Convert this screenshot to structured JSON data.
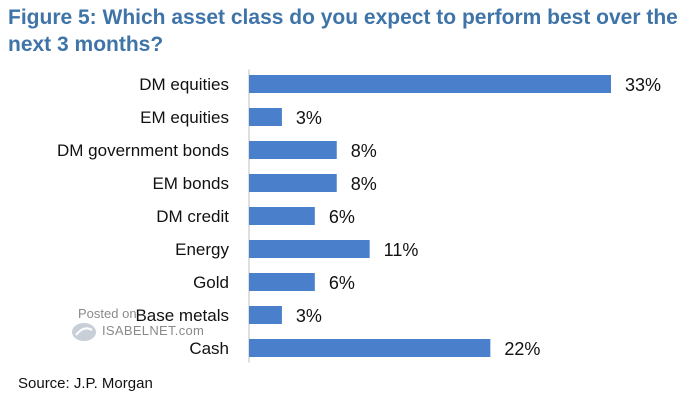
{
  "title": "Figure 5: Which asset class do you expect to perform best over the next 3 months?",
  "source": "Source: J.P. Morgan",
  "watermark": {
    "posted": "Posted on",
    "site": "ISABELNET.com"
  },
  "colors": {
    "bar": "#4a7fcb",
    "title": "#3f74a8"
  },
  "chart_data": {
    "type": "bar",
    "orientation": "horizontal",
    "categories": [
      "DM equities",
      "EM equities",
      "DM government bonds",
      "EM bonds",
      "DM credit",
      "Energy",
      "Gold",
      "Base metals",
      "Cash"
    ],
    "values": [
      33,
      3,
      8,
      8,
      6,
      11,
      6,
      3,
      22
    ],
    "data_labels": [
      "33%",
      "3%",
      "8%",
      "8%",
      "6%",
      "11%",
      "6%",
      "3%",
      "22%"
    ],
    "value_unit": "%",
    "xlim": [
      0,
      33
    ],
    "grid": false,
    "legend": "none"
  }
}
